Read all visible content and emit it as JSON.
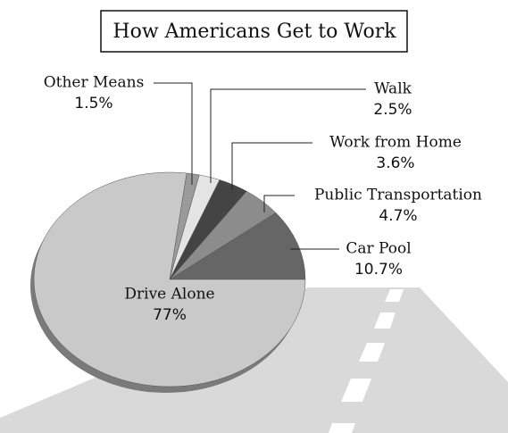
{
  "chart_data": {
    "type": "pie",
    "title": "How Americans Get to Work",
    "categories": [
      "Car Pool",
      "Public Transportation",
      "Work from Home",
      "Walk",
      "Other Means",
      "Drive Alone"
    ],
    "values": [
      10.7,
      4.7,
      3.6,
      2.5,
      1.5,
      77
    ],
    "value_labels": [
      "10.7%",
      "4.7%",
      "3.6%",
      "2.5%",
      "1.5%",
      "77%"
    ],
    "colors": [
      "#666666",
      "#8c8c8c",
      "#444444",
      "#e4e4e4",
      "#9a9a9a",
      "#c9c9c9"
    ]
  }
}
